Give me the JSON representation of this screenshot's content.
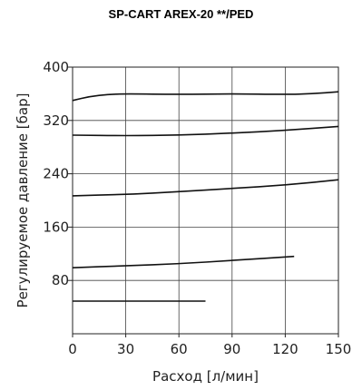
{
  "chart_data": {
    "type": "line",
    "title": "SP-CART  AREX-20 **/PED",
    "xlabel": "Расход [л/мин]",
    "ylabel": "Регулируемое давление [бар]",
    "xlim": [
      0,
      150
    ],
    "ylim": [
      0,
      400
    ],
    "xticks": [
      0,
      30,
      60,
      90,
      120,
      150
    ],
    "yticks": [
      80,
      160,
      240,
      320,
      400
    ],
    "grid": true,
    "series": [
      {
        "x": [
          0,
          10,
          20,
          30,
          60,
          90,
          120,
          135,
          150
        ],
        "values": [
          350,
          356,
          359,
          360,
          359,
          360,
          359,
          360,
          363
        ]
      },
      {
        "x": [
          0,
          30,
          60,
          90,
          120,
          150
        ],
        "values": [
          298,
          297,
          298,
          301,
          305,
          311
        ]
      },
      {
        "x": [
          0,
          30,
          60,
          90,
          120,
          150
        ],
        "values": [
          207,
          209,
          213,
          218,
          223,
          231
        ]
      },
      {
        "x": [
          0,
          30,
          60,
          90,
          125
        ],
        "values": [
          99,
          102,
          105,
          110,
          116
        ]
      },
      {
        "x": [
          0,
          75
        ],
        "values": [
          49,
          49
        ]
      }
    ]
  }
}
